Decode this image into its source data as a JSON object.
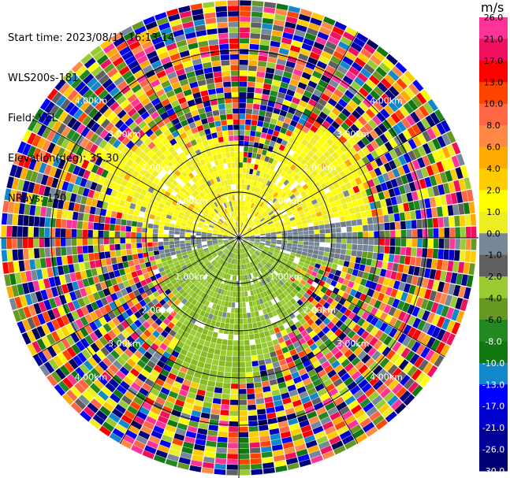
{
  "header": {
    "start_time": "Start time: 2023/08/11 16:13:14",
    "device": "WLS200s-181",
    "field": "Field: VEL",
    "elevation": "Elevation(deg): 35.30",
    "nrays": "NRays: 120"
  },
  "colorbar": {
    "unit": "m/s",
    "ticks": [
      "26.0",
      "21.0",
      "17.0",
      "13.0",
      "10.0",
      "8.0",
      "6.0",
      "4.0",
      "2.0",
      "1.0",
      "0.0",
      "-1.0",
      "-2.0",
      "-4.0",
      "-6.0",
      "-8.0",
      "-10.0",
      "-13.0",
      "-17.0",
      "-21.0",
      "-26.0",
      "-30.0"
    ],
    "colors": [
      "#ff3399",
      "#f01060",
      "#ff0000",
      "#ff4400",
      "#ff6644",
      "#ff8844",
      "#ffaa00",
      "#ffcc00",
      "#ffff00",
      "#eeee22",
      "#778899",
      "#606060",
      "#99cc33",
      "#669922",
      "#228822",
      "#117711",
      "#1188cc",
      "#0000ff",
      "#0000cc",
      "#000099",
      "#000077",
      "#000055"
    ]
  },
  "range_labels": {
    "ring1": "1.00km",
    "ring2": "2.00km",
    "ring3": "3.00km",
    "ring4": "4.00km"
  }
}
